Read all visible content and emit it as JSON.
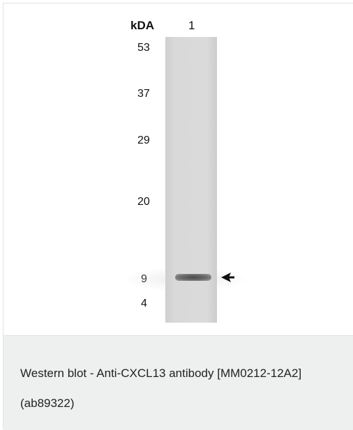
{
  "blot": {
    "unit_label": "kDA",
    "lane_label": "1",
    "markers": [
      "53",
      "37",
      "29",
      "20",
      "9",
      "4"
    ],
    "lane_color": "#d8d8d8",
    "band_color": "#555555",
    "arrow_icon": "arrow-left-icon"
  },
  "caption": {
    "text": "Western blot - Anti-CXCL13 antibody [MM0212-12A2] (ab89322)"
  }
}
